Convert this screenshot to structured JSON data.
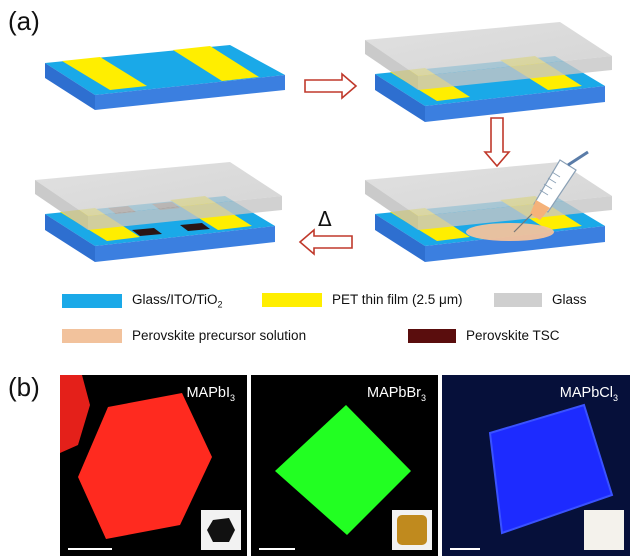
{
  "panel_a_label": "(a)",
  "panel_b_label": "(b)",
  "delta_symbol": "Δ",
  "legend": [
    {
      "label": "Glass/ITO/TiO",
      "sub": "2",
      "color": "#1aa9e8"
    },
    {
      "label": "PET thin film (2.5 μm)",
      "sub": "",
      "color": "#ffee00"
    },
    {
      "label": "Glass",
      "sub": "",
      "color": "#cfcfcf"
    },
    {
      "label": "Perovskite precursor solution",
      "sub": "",
      "color": "#f2c29c"
    },
    {
      "label": "Perovskite TSC",
      "sub": "",
      "color": "#5a0d0d"
    }
  ],
  "photos": [
    {
      "label": "MAPbI",
      "sub": "3",
      "color": "#ff2a1f"
    },
    {
      "label": "MAPbBr",
      "sub": "3",
      "color": "#22ff22"
    },
    {
      "label": "MAPbCl",
      "sub": "3",
      "color": "#1d2bff"
    }
  ],
  "colors": {
    "substrate_top": "#1aa9e8",
    "substrate_side": "#3b6fd6",
    "pet": "#ffee00",
    "glass_cover": "#d3d3d3",
    "arrow": "#c0392b",
    "precursor": "#f2c29c",
    "tsc": "#5a0d0d"
  }
}
